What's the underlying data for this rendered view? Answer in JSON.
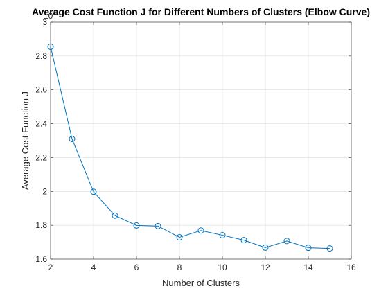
{
  "chart_data": {
    "type": "line",
    "title": "Average Cost Function J for Different Numbers of Clusters (Elbow Curve)",
    "xlabel": "Number of Clusters",
    "ylabel": "Average Cost Function J",
    "y_exponent_base": "10",
    "y_exponent_power": "4",
    "xlim": [
      2,
      16
    ],
    "ylim": [
      1.6,
      3.0
    ],
    "x_ticks": [
      "2",
      "4",
      "6",
      "8",
      "10",
      "12",
      "14",
      "16"
    ],
    "y_ticks": [
      "1.6",
      "1.8",
      "2",
      "2.2",
      "2.4",
      "2.6",
      "2.8",
      "3"
    ],
    "grid": true,
    "series": [
      {
        "x": [
          2,
          3,
          4,
          5,
          6,
          7,
          8,
          9,
          10,
          11,
          12,
          13,
          14,
          15
        ],
        "values": [
          2.855,
          2.31,
          1.998,
          1.857,
          1.799,
          1.795,
          1.729,
          1.769,
          1.741,
          1.712,
          1.668,
          1.707,
          1.667,
          1.663
        ],
        "color": "#0072BD",
        "marker": "circle"
      }
    ]
  }
}
